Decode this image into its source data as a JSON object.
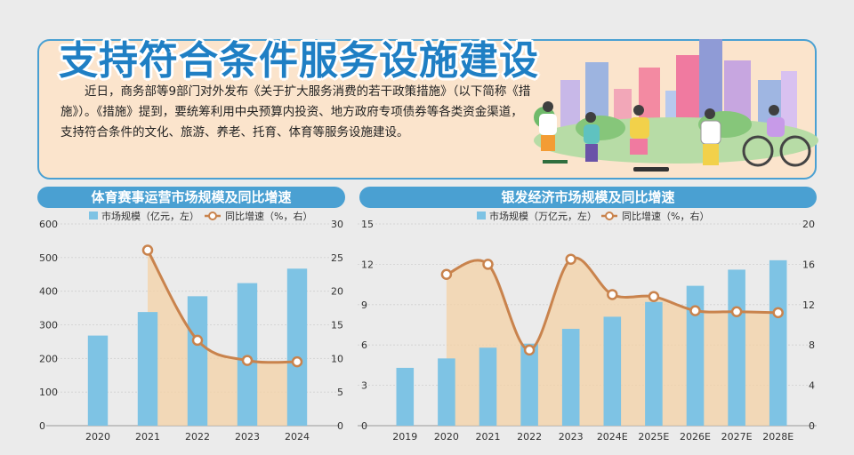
{
  "header": {
    "title": "支持符合条件服务设施建设",
    "body": "近日，商务部等9部门对外发布《关于扩大服务消费的若干政策措施》（以下简称《措施》）。《措施》提到，要统筹利用中央预算内投资、地方政府专项债券等各类资金渠道，支持符合条件的文化、旅游、养老、托育、体育等服务设施建设。"
  },
  "colors": {
    "bar": "#7ec3e4",
    "line": "#c9834d",
    "area": "#f4d2a6",
    "title_bar": "#4aa0d2",
    "headline": "#1f7fc4"
  },
  "chart_data": [
    {
      "type": "bar",
      "title": "体育赛事运营市场规模及同比增速",
      "categories": [
        "2020",
        "2021",
        "2022",
        "2023",
        "2024"
      ],
      "series": [
        {
          "name": "市场规模（亿元，左）",
          "type": "bar",
          "axis": "left",
          "values": [
            268,
            338,
            385,
            424,
            467
          ]
        },
        {
          "name": "同比增速（%，右）",
          "type": "line",
          "axis": "right",
          "values": [
            null,
            26.1,
            12.7,
            9.7,
            9.5
          ]
        }
      ],
      "y_left": {
        "min": 0,
        "max": 600,
        "ticks": [
          "0",
          "100",
          "200",
          "300",
          "400",
          "500",
          "600"
        ]
      },
      "y_right": {
        "min": 0,
        "max": 30,
        "ticks": [
          "0",
          "5",
          "10",
          "15",
          "20",
          "25",
          "30"
        ]
      },
      "legend_position": "top"
    },
    {
      "type": "bar",
      "title": "银发经济市场规模及同比增速",
      "categories": [
        "2019",
        "2020",
        "2021",
        "2022",
        "2023",
        "2024E",
        "2025E",
        "2026E",
        "2027E",
        "2028E"
      ],
      "series": [
        {
          "name": "市场规模（万亿元，左）",
          "type": "bar",
          "axis": "left",
          "values": [
            4.3,
            5.0,
            5.8,
            6.1,
            7.2,
            8.1,
            9.2,
            10.4,
            11.6,
            12.3
          ]
        },
        {
          "name": "同比增速（%，右）",
          "type": "line",
          "axis": "right",
          "values": [
            null,
            15.0,
            16.0,
            7.5,
            16.5,
            13.0,
            12.8,
            11.4,
            11.3,
            11.2
          ]
        }
      ],
      "y_left": {
        "min": 0,
        "max": 15,
        "ticks": [
          "0",
          "3",
          "6",
          "9",
          "12",
          "15"
        ]
      },
      "y_right": {
        "min": 0,
        "max": 20,
        "ticks": [
          "0",
          "4",
          "8",
          "12",
          "16",
          "20"
        ]
      },
      "legend_position": "top"
    }
  ]
}
